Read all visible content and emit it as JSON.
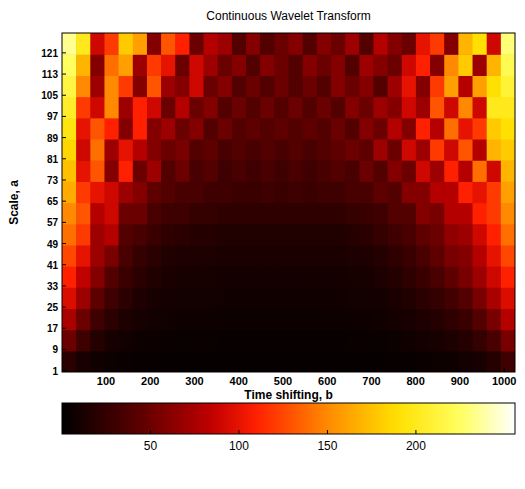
{
  "chart_data": {
    "type": "heatmap",
    "title": "Continuous Wavelet Transform",
    "x_label": "Time shifting, b",
    "y_label": "Scale, a",
    "xlim": [
      0.5,
      1024.5
    ],
    "xticks": [
      100,
      200,
      300,
      400,
      500,
      600,
      700,
      800,
      900,
      1000
    ],
    "ylim": [
      0.5,
      128.5
    ],
    "yticks": [
      1,
      9,
      17,
      25,
      33,
      41,
      49,
      57,
      65,
      73,
      81,
      89,
      97,
      105,
      113,
      121
    ],
    "x": [
      16.5,
      48.5,
      80.5,
      112.5,
      144.5,
      176.5,
      208.5,
      240.5,
      272.5,
      304.5,
      336.5,
      368.5,
      400.5,
      432.5,
      464.5,
      496.5,
      528.5,
      560.5,
      592.5,
      624.5,
      656.5,
      688.5,
      720.5,
      752.5,
      784.5,
      816.5,
      848.5,
      880.5,
      912.5,
      944.5,
      976.5,
      1008.5
    ],
    "y": [
      4.5,
      12.5,
      20.5,
      28.5,
      36.5,
      44.5,
      52.5,
      60.5,
      68.5,
      76.5,
      84.5,
      92.5,
      100.5,
      108.5,
      116.5,
      124.5
    ],
    "cells": [
      [
        20,
        12,
        8,
        6,
        5,
        4,
        4,
        3,
        3,
        3,
        3,
        3,
        3,
        3,
        3,
        3,
        3,
        3,
        3,
        3,
        3,
        3,
        3,
        4,
        4,
        5,
        6,
        7,
        9,
        12,
        18,
        30
      ],
      [
        50,
        30,
        18,
        12,
        9,
        7,
        6,
        5,
        5,
        5,
        5,
        4,
        4,
        4,
        4,
        4,
        4,
        4,
        4,
        4,
        5,
        5,
        5,
        6,
        8,
        10,
        12,
        14,
        18,
        25,
        35,
        55
      ],
      [
        75,
        50,
        30,
        20,
        14,
        11,
        9,
        8,
        7,
        7,
        7,
        6,
        6,
        6,
        6,
        6,
        6,
        6,
        6,
        6,
        7,
        7,
        8,
        10,
        12,
        15,
        18,
        22,
        28,
        40,
        55,
        80
      ],
      [
        95,
        70,
        45,
        30,
        20,
        15,
        12,
        10,
        9,
        9,
        9,
        8,
        8,
        8,
        8,
        8,
        8,
        8,
        8,
        8,
        9,
        9,
        10,
        13,
        16,
        20,
        25,
        32,
        40,
        55,
        75,
        95
      ],
      [
        110,
        85,
        60,
        40,
        28,
        20,
        16,
        13,
        12,
        11,
        11,
        10,
        10,
        10,
        10,
        10,
        10,
        10,
        10,
        10,
        11,
        12,
        14,
        18,
        22,
        28,
        35,
        45,
        55,
        70,
        90,
        110
      ],
      [
        125,
        100,
        70,
        55,
        35,
        25,
        20,
        16,
        15,
        14,
        14,
        13,
        13,
        13,
        13,
        13,
        13,
        13,
        13,
        13,
        14,
        15,
        18,
        22,
        28,
        35,
        45,
        55,
        60,
        80,
        100,
        125
      ],
      [
        140,
        120,
        70,
        80,
        40,
        35,
        28,
        22,
        20,
        18,
        18,
        16,
        16,
        16,
        16,
        16,
        16,
        16,
        16,
        16,
        18,
        20,
        25,
        30,
        35,
        45,
        50,
        65,
        70,
        90,
        110,
        140
      ],
      [
        150,
        130,
        80,
        90,
        50,
        50,
        35,
        30,
        30,
        25,
        25,
        22,
        22,
        22,
        22,
        22,
        22,
        22,
        22,
        22,
        25,
        28,
        30,
        40,
        40,
        60,
        55,
        80,
        80,
        110,
        120,
        150
      ],
      [
        165,
        120,
        100,
        90,
        70,
        60,
        45,
        40,
        35,
        35,
        30,
        30,
        28,
        28,
        30,
        28,
        30,
        28,
        30,
        30,
        35,
        35,
        45,
        40,
        60,
        60,
        80,
        80,
        110,
        100,
        120,
        160
      ],
      [
        175,
        100,
        130,
        60,
        110,
        50,
        70,
        40,
        50,
        35,
        40,
        30,
        35,
        30,
        35,
        30,
        35,
        30,
        35,
        40,
        35,
        50,
        40,
        60,
        50,
        90,
        70,
        110,
        80,
        140,
        90,
        170
      ],
      [
        185,
        90,
        140,
        70,
        100,
        80,
        60,
        50,
        55,
        40,
        45,
        35,
        40,
        35,
        40,
        35,
        40,
        35,
        40,
        45,
        50,
        45,
        70,
        50,
        90,
        70,
        120,
        90,
        130,
        80,
        170,
        180
      ],
      [
        195,
        100,
        130,
        110,
        60,
        110,
        60,
        70,
        50,
        60,
        40,
        50,
        40,
        45,
        40,
        45,
        40,
        45,
        40,
        50,
        40,
        60,
        50,
        80,
        60,
        110,
        80,
        140,
        100,
        120,
        180,
        190
      ],
      [
        205,
        120,
        90,
        150,
        70,
        110,
        90,
        50,
        80,
        50,
        60,
        40,
        50,
        40,
        50,
        40,
        50,
        40,
        50,
        40,
        60,
        50,
        70,
        60,
        90,
        70,
        130,
        90,
        150,
        90,
        200,
        200
      ],
      [
        215,
        150,
        70,
        150,
        120,
        60,
        130,
        70,
        60,
        90,
        50,
        60,
        40,
        50,
        40,
        50,
        40,
        50,
        40,
        60,
        50,
        60,
        40,
        70,
        100,
        60,
        120,
        160,
        80,
        160,
        190,
        210
      ],
      [
        225,
        170,
        60,
        140,
        160,
        70,
        120,
        100,
        50,
        90,
        70,
        50,
        60,
        40,
        60,
        50,
        40,
        60,
        50,
        60,
        40,
        70,
        60,
        50,
        90,
        110,
        60,
        150,
        180,
        70,
        170,
        220
      ],
      [
        235,
        200,
        90,
        120,
        180,
        160,
        60,
        130,
        110,
        50,
        80,
        70,
        40,
        60,
        40,
        50,
        60,
        40,
        60,
        50,
        70,
        40,
        80,
        60,
        50,
        100,
        120,
        60,
        170,
        190,
        90,
        230
      ]
    ],
    "colorbar": {
      "range": [
        0,
        256
      ],
      "ticks": [
        50,
        100,
        150,
        200
      ]
    }
  }
}
